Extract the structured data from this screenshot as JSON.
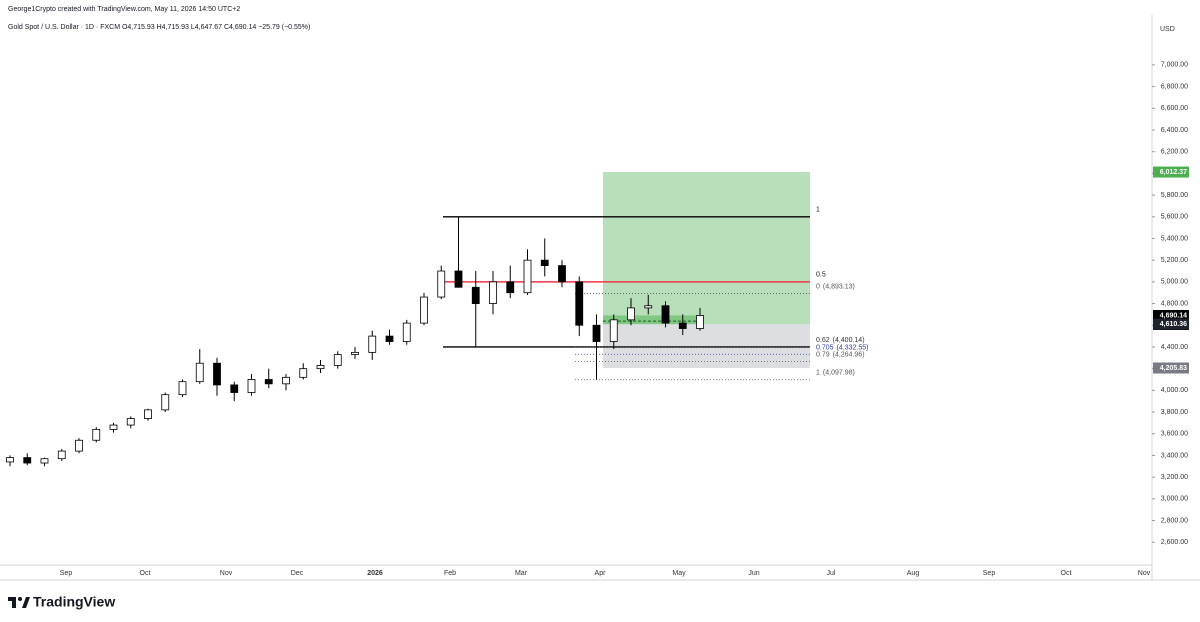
{
  "header": {
    "credit": "George1Crypto created with TradingView.com, May 11, 2026 14:50 UTC+2",
    "legend": "Gold Spot / U.S. Dollar · 1D · FXCM  O4,715.93  H4,715.93  L4,647.67  C4,690.14  −25.79 (−0.55%)"
  },
  "chart_data": {
    "type": "candlestick",
    "currency": "USD",
    "ylim": [
      2390,
      7460
    ],
    "yticks": [
      {
        "value": 2600,
        "label": "2,600.00"
      },
      {
        "value": 2800,
        "label": "2,800.00"
      },
      {
        "value": 3000,
        "label": "3,000.00"
      },
      {
        "value": 3200,
        "label": "3,200.00"
      },
      {
        "value": 3400,
        "label": "3,400.00"
      },
      {
        "value": 3600,
        "label": "3,600.00"
      },
      {
        "value": 3800,
        "label": "3,800.00"
      },
      {
        "value": 4000,
        "label": "4,000.00"
      },
      {
        "value": 4200,
        "label": "4,200.00"
      },
      {
        "value": 4400,
        "label": "4,400.00"
      },
      {
        "value": 4600,
        "label": "4,600.00"
      },
      {
        "value": 4800,
        "label": "4,800.00"
      },
      {
        "value": 5000,
        "label": "5,000.00"
      },
      {
        "value": 5200,
        "label": "5,200.00"
      },
      {
        "value": 5400,
        "label": "5,400.00"
      },
      {
        "value": 5600,
        "label": "5,600.00"
      },
      {
        "value": 5800,
        "label": "5,800.00"
      },
      {
        "value": 6000,
        "label": "6,000.00"
      },
      {
        "value": 6200,
        "label": "6,200.00"
      },
      {
        "value": 6400,
        "label": "6,400.00"
      },
      {
        "value": 6600,
        "label": "6,600.00"
      },
      {
        "value": 6800,
        "label": "6,800.00"
      },
      {
        "value": 7000,
        "label": "7,000.00"
      }
    ],
    "xticks": [
      "Sep",
      "Oct",
      "Nov",
      "Dec",
      "2026",
      "Feb",
      "Mar",
      "Apr",
      "May",
      "Jun",
      "Jul",
      "Aug",
      "Sep",
      "Oct",
      "Nov"
    ],
    "candles": {
      "open": [
        3340,
        3380,
        3330,
        3370,
        3440,
        3540,
        3640,
        3680,
        3740,
        3820,
        3960,
        4080,
        4250,
        4050,
        3980,
        4100,
        4060,
        4120,
        4200,
        4230,
        4330,
        4350,
        4500,
        4450,
        4620,
        4860,
        5100,
        4950,
        4800,
        5000,
        4900,
        5200,
        5150,
        5000,
        4600,
        4450,
        4650,
        4760,
        4780,
        4620,
        4570
      ],
      "high": [
        3400,
        3420,
        3380,
        3460,
        3560,
        3660,
        3700,
        3760,
        3830,
        3980,
        4100,
        4380,
        4300,
        4080,
        4150,
        4200,
        4150,
        4250,
        4280,
        4360,
        4400,
        4550,
        4560,
        4650,
        4900,
        5150,
        5600,
        5100,
        5100,
        5150,
        5300,
        5400,
        5200,
        5050,
        4700,
        4700,
        4850,
        4880,
        4820,
        4700,
        4760
      ],
      "low": [
        3300,
        3310,
        3300,
        3350,
        3420,
        3520,
        3610,
        3650,
        3720,
        3800,
        3940,
        4060,
        3950,
        3900,
        3950,
        4020,
        4000,
        4100,
        4160,
        4200,
        4290,
        4280,
        4420,
        4420,
        4600,
        4840,
        5050,
        4400,
        4700,
        4850,
        4880,
        5050,
        4950,
        4500,
        4100,
        4380,
        4600,
        4700,
        4580,
        4510,
        4550
      ],
      "close": [
        3380,
        3330,
        3370,
        3440,
        3540,
        3640,
        3680,
        3740,
        3820,
        3960,
        4080,
        4250,
        4050,
        3980,
        4100,
        4060,
        4120,
        4200,
        4230,
        4330,
        4350,
        4500,
        4450,
        4620,
        4860,
        5100,
        4950,
        4800,
        5000,
        4900,
        5200,
        5150,
        5000,
        4600,
        4450,
        4650,
        4760,
        4780,
        4620,
        4570,
        4690
      ]
    },
    "up_color": "#ffffff",
    "down_color": "#000000",
    "price_tags": [
      {
        "value": 6012.37,
        "label": "6,012.37",
        "color": "#4caf50"
      },
      {
        "value": 4690.14,
        "label": "4,690.14",
        "color": "#000000"
      },
      {
        "value": 4610.36,
        "label": "4,610.36",
        "color": "#1e222d"
      },
      {
        "value": 4205.83,
        "label": "4,205.83",
        "color": "#787b86"
      }
    ],
    "countdown": "08:09:02",
    "fib_box": [
      {
        "label": "1",
        "price": 5600,
        "color": "#000000"
      },
      {
        "label": "0.5",
        "price": 5000,
        "color": "#f23645"
      },
      {
        "price": 4400,
        "color": "#000000"
      }
    ],
    "fib_levels": [
      {
        "ratio": 0,
        "price": {
          "value": 4893.13,
          "label": "(4,893.13)"
        },
        "color": "#555555"
      },
      {
        "ratio": 0.62,
        "price": {
          "value": 4400.14,
          "label": "(4,400.14)"
        },
        "color": "#333333"
      },
      {
        "ratio": 0.705,
        "price": {
          "value": 4332.55,
          "label": "(4,332.55)"
        },
        "color": "#2a3aa8"
      },
      {
        "ratio": 0.79,
        "price": {
          "value": 4264.96,
          "label": "(4,264.96)"
        },
        "color": "#555555"
      },
      {
        "ratio": 1,
        "price": {
          "value": 4097.98,
          "label": "(4,097.98)"
        },
        "color": "#555555"
      }
    ]
  },
  "footer": {
    "brand": "TradingView"
  }
}
